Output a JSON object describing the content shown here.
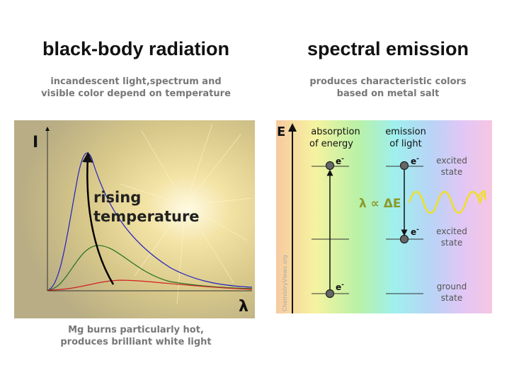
{
  "left": {
    "title": "black-body radiation",
    "subtitle": [
      "incandescent light,spectrum and",
      "visible color depend on temperature"
    ],
    "y_axis": "I",
    "x_axis": "λ",
    "annotation": [
      "rising",
      "temperature"
    ],
    "caption": [
      "Mg burns particularly hot,",
      "produces brilliant white light"
    ]
  },
  "right": {
    "title": "spectral emission",
    "subtitle": [
      "produces characteristic colors",
      "based on metal salt"
    ],
    "y_axis": "E",
    "absorption": [
      "absorption",
      "of energy"
    ],
    "emission": [
      "emission",
      "of light"
    ],
    "electron": "e",
    "charge": "-",
    "levels": [
      [
        "excited",
        "state"
      ],
      [
        "excited",
        "state"
      ],
      [
        "ground",
        "state"
      ]
    ],
    "relation": "λ ∝ ΔE",
    "watermark": "ChemistryViews.org"
  }
}
